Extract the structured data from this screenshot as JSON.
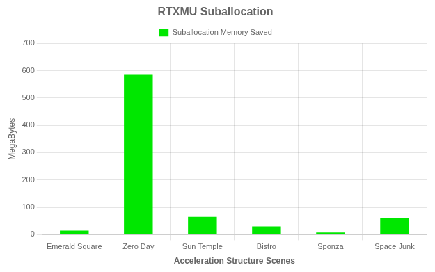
{
  "chart_data": {
    "type": "bar",
    "title": "RTXMU Suballocation",
    "x_label": "Acceleration Structure Scenes",
    "y_label": "MegaBytes",
    "categories": [
      "Emerald Square",
      "Zero Day",
      "Sun Temple",
      "Bistro",
      "Sponza",
      "Space Junk"
    ],
    "series": [
      {
        "name": "Suballocation Memory Saved",
        "color": "#00e700",
        "values": [
          15,
          585,
          65,
          30,
          8,
          60
        ]
      }
    ],
    "ylim": [
      0,
      700
    ],
    "yticks": [
      0,
      100,
      200,
      300,
      400,
      500,
      600,
      700
    ],
    "grid": true,
    "legend": "top"
  }
}
